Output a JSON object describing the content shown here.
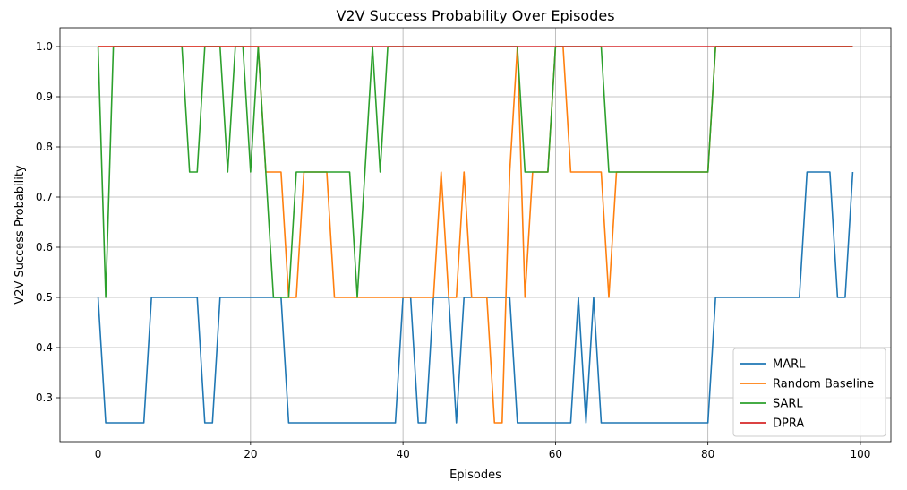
{
  "chart_data": {
    "type": "line",
    "title": "V2V Success Probability Over Episodes",
    "xlabel": "Episodes",
    "ylabel": "V2V Success Probability",
    "xlim": [
      -5,
      104
    ],
    "ylim": [
      0.2125,
      1.0375
    ],
    "xticks": [
      0,
      20,
      40,
      60,
      80,
      100
    ],
    "yticks": [
      0.3,
      0.4,
      0.5,
      0.6,
      0.7,
      0.8,
      0.9,
      1.0
    ],
    "ytick_labels": [
      "0.3",
      "0.4",
      "0.5",
      "0.6",
      "0.7",
      "0.8",
      "0.9",
      "1.0"
    ],
    "grid": true,
    "legend": "lower-right",
    "series": [
      {
        "name": "MARL",
        "color": "#1f77b4",
        "values": [
          0.5,
          0.25,
          0.25,
          0.25,
          0.25,
          0.25,
          0.25,
          0.5,
          0.5,
          0.5,
          0.5,
          0.5,
          0.5,
          0.5,
          0.25,
          0.25,
          0.5,
          0.5,
          0.5,
          0.5,
          0.5,
          0.5,
          0.5,
          0.5,
          0.5,
          0.25,
          0.25,
          0.25,
          0.25,
          0.25,
          0.25,
          0.25,
          0.25,
          0.25,
          0.25,
          0.25,
          0.25,
          0.25,
          0.25,
          0.25,
          0.5,
          0.5,
          0.25,
          0.25,
          0.5,
          0.5,
          0.5,
          0.25,
          0.5,
          0.5,
          0.5,
          0.5,
          0.5,
          0.5,
          0.5,
          0.25,
          0.25,
          0.25,
          0.25,
          0.25,
          0.25,
          0.25,
          0.25,
          0.5,
          0.25,
          0.5,
          0.25,
          0.25,
          0.25,
          0.25,
          0.25,
          0.25,
          0.25,
          0.25,
          0.25,
          0.25,
          0.25,
          0.25,
          0.25,
          0.25,
          0.25,
          0.5,
          0.5,
          0.5,
          0.5,
          0.5,
          0.5,
          0.5,
          0.5,
          0.5,
          0.5,
          0.5,
          0.5,
          0.75,
          0.75,
          0.75,
          0.75,
          0.5,
          0.5,
          0.75
        ]
      },
      {
        "name": "Random Baseline",
        "color": "#ff7f0e",
        "values": [
          1.0,
          1.0,
          1.0,
          1.0,
          1.0,
          1.0,
          1.0,
          1.0,
          1.0,
          1.0,
          1.0,
          1.0,
          1.0,
          1.0,
          1.0,
          1.0,
          1.0,
          1.0,
          1.0,
          1.0,
          1.0,
          1.0,
          0.75,
          0.75,
          0.75,
          0.5,
          0.5,
          0.75,
          0.75,
          0.75,
          0.75,
          0.5,
          0.5,
          0.5,
          0.5,
          0.5,
          0.5,
          0.5,
          0.5,
          0.5,
          0.5,
          0.5,
          0.5,
          0.5,
          0.5,
          0.75,
          0.5,
          0.5,
          0.75,
          0.5,
          0.5,
          0.5,
          0.25,
          0.25,
          0.75,
          1.0,
          0.5,
          0.75,
          0.75,
          0.75,
          1.0,
          1.0,
          0.75,
          0.75,
          0.75,
          0.75,
          0.75,
          0.5,
          0.75,
          0.75,
          0.75,
          0.75,
          0.75,
          0.75,
          0.75,
          0.75,
          0.75,
          0.75,
          0.75,
          0.75,
          0.75,
          1.0,
          1.0,
          1.0,
          1.0,
          1.0,
          1.0,
          1.0,
          1.0,
          1.0,
          1.0,
          1.0,
          1.0,
          1.0,
          1.0,
          1.0,
          1.0,
          1.0,
          1.0,
          1.0
        ]
      },
      {
        "name": "SARL",
        "color": "#2ca02c",
        "values": [
          1.0,
          0.5,
          1.0,
          1.0,
          1.0,
          1.0,
          1.0,
          1.0,
          1.0,
          1.0,
          1.0,
          1.0,
          0.75,
          0.75,
          1.0,
          1.0,
          1.0,
          0.75,
          1.0,
          1.0,
          0.75,
          1.0,
          0.75,
          0.5,
          0.5,
          0.5,
          0.75,
          0.75,
          0.75,
          0.75,
          0.75,
          0.75,
          0.75,
          0.75,
          0.5,
          0.75,
          1.0,
          0.75,
          1.0,
          1.0,
          1.0,
          1.0,
          1.0,
          1.0,
          1.0,
          1.0,
          1.0,
          1.0,
          1.0,
          1.0,
          1.0,
          1.0,
          1.0,
          1.0,
          1.0,
          1.0,
          0.75,
          0.75,
          0.75,
          0.75,
          1.0,
          1.0,
          1.0,
          1.0,
          1.0,
          1.0,
          1.0,
          0.75,
          0.75,
          0.75,
          0.75,
          0.75,
          0.75,
          0.75,
          0.75,
          0.75,
          0.75,
          0.75,
          0.75,
          0.75,
          0.75,
          1.0,
          1.0,
          1.0,
          1.0,
          1.0,
          1.0,
          1.0,
          1.0,
          1.0,
          1.0,
          1.0,
          1.0,
          1.0,
          1.0,
          1.0,
          1.0,
          1.0,
          1.0,
          1.0
        ]
      },
      {
        "name": "DPRA",
        "color": "#d62728",
        "values": [
          1.0,
          1.0,
          1.0,
          1.0,
          1.0,
          1.0,
          1.0,
          1.0,
          1.0,
          1.0,
          1.0,
          1.0,
          1.0,
          1.0,
          1.0,
          1.0,
          1.0,
          1.0,
          1.0,
          1.0,
          1.0,
          1.0,
          1.0,
          1.0,
          1.0,
          1.0,
          1.0,
          1.0,
          1.0,
          1.0,
          1.0,
          1.0,
          1.0,
          1.0,
          1.0,
          1.0,
          1.0,
          1.0,
          1.0,
          1.0,
          1.0,
          1.0,
          1.0,
          1.0,
          1.0,
          1.0,
          1.0,
          1.0,
          1.0,
          1.0,
          1.0,
          1.0,
          1.0,
          1.0,
          1.0,
          1.0,
          1.0,
          1.0,
          1.0,
          1.0,
          1.0,
          1.0,
          1.0,
          1.0,
          1.0,
          1.0,
          1.0,
          1.0,
          1.0,
          1.0,
          1.0,
          1.0,
          1.0,
          1.0,
          1.0,
          1.0,
          1.0,
          1.0,
          1.0,
          1.0,
          1.0,
          1.0,
          1.0,
          1.0,
          1.0,
          1.0,
          1.0,
          1.0,
          1.0,
          1.0,
          1.0,
          1.0,
          1.0,
          1.0,
          1.0,
          1.0,
          1.0,
          1.0,
          1.0,
          1.0
        ]
      }
    ]
  }
}
